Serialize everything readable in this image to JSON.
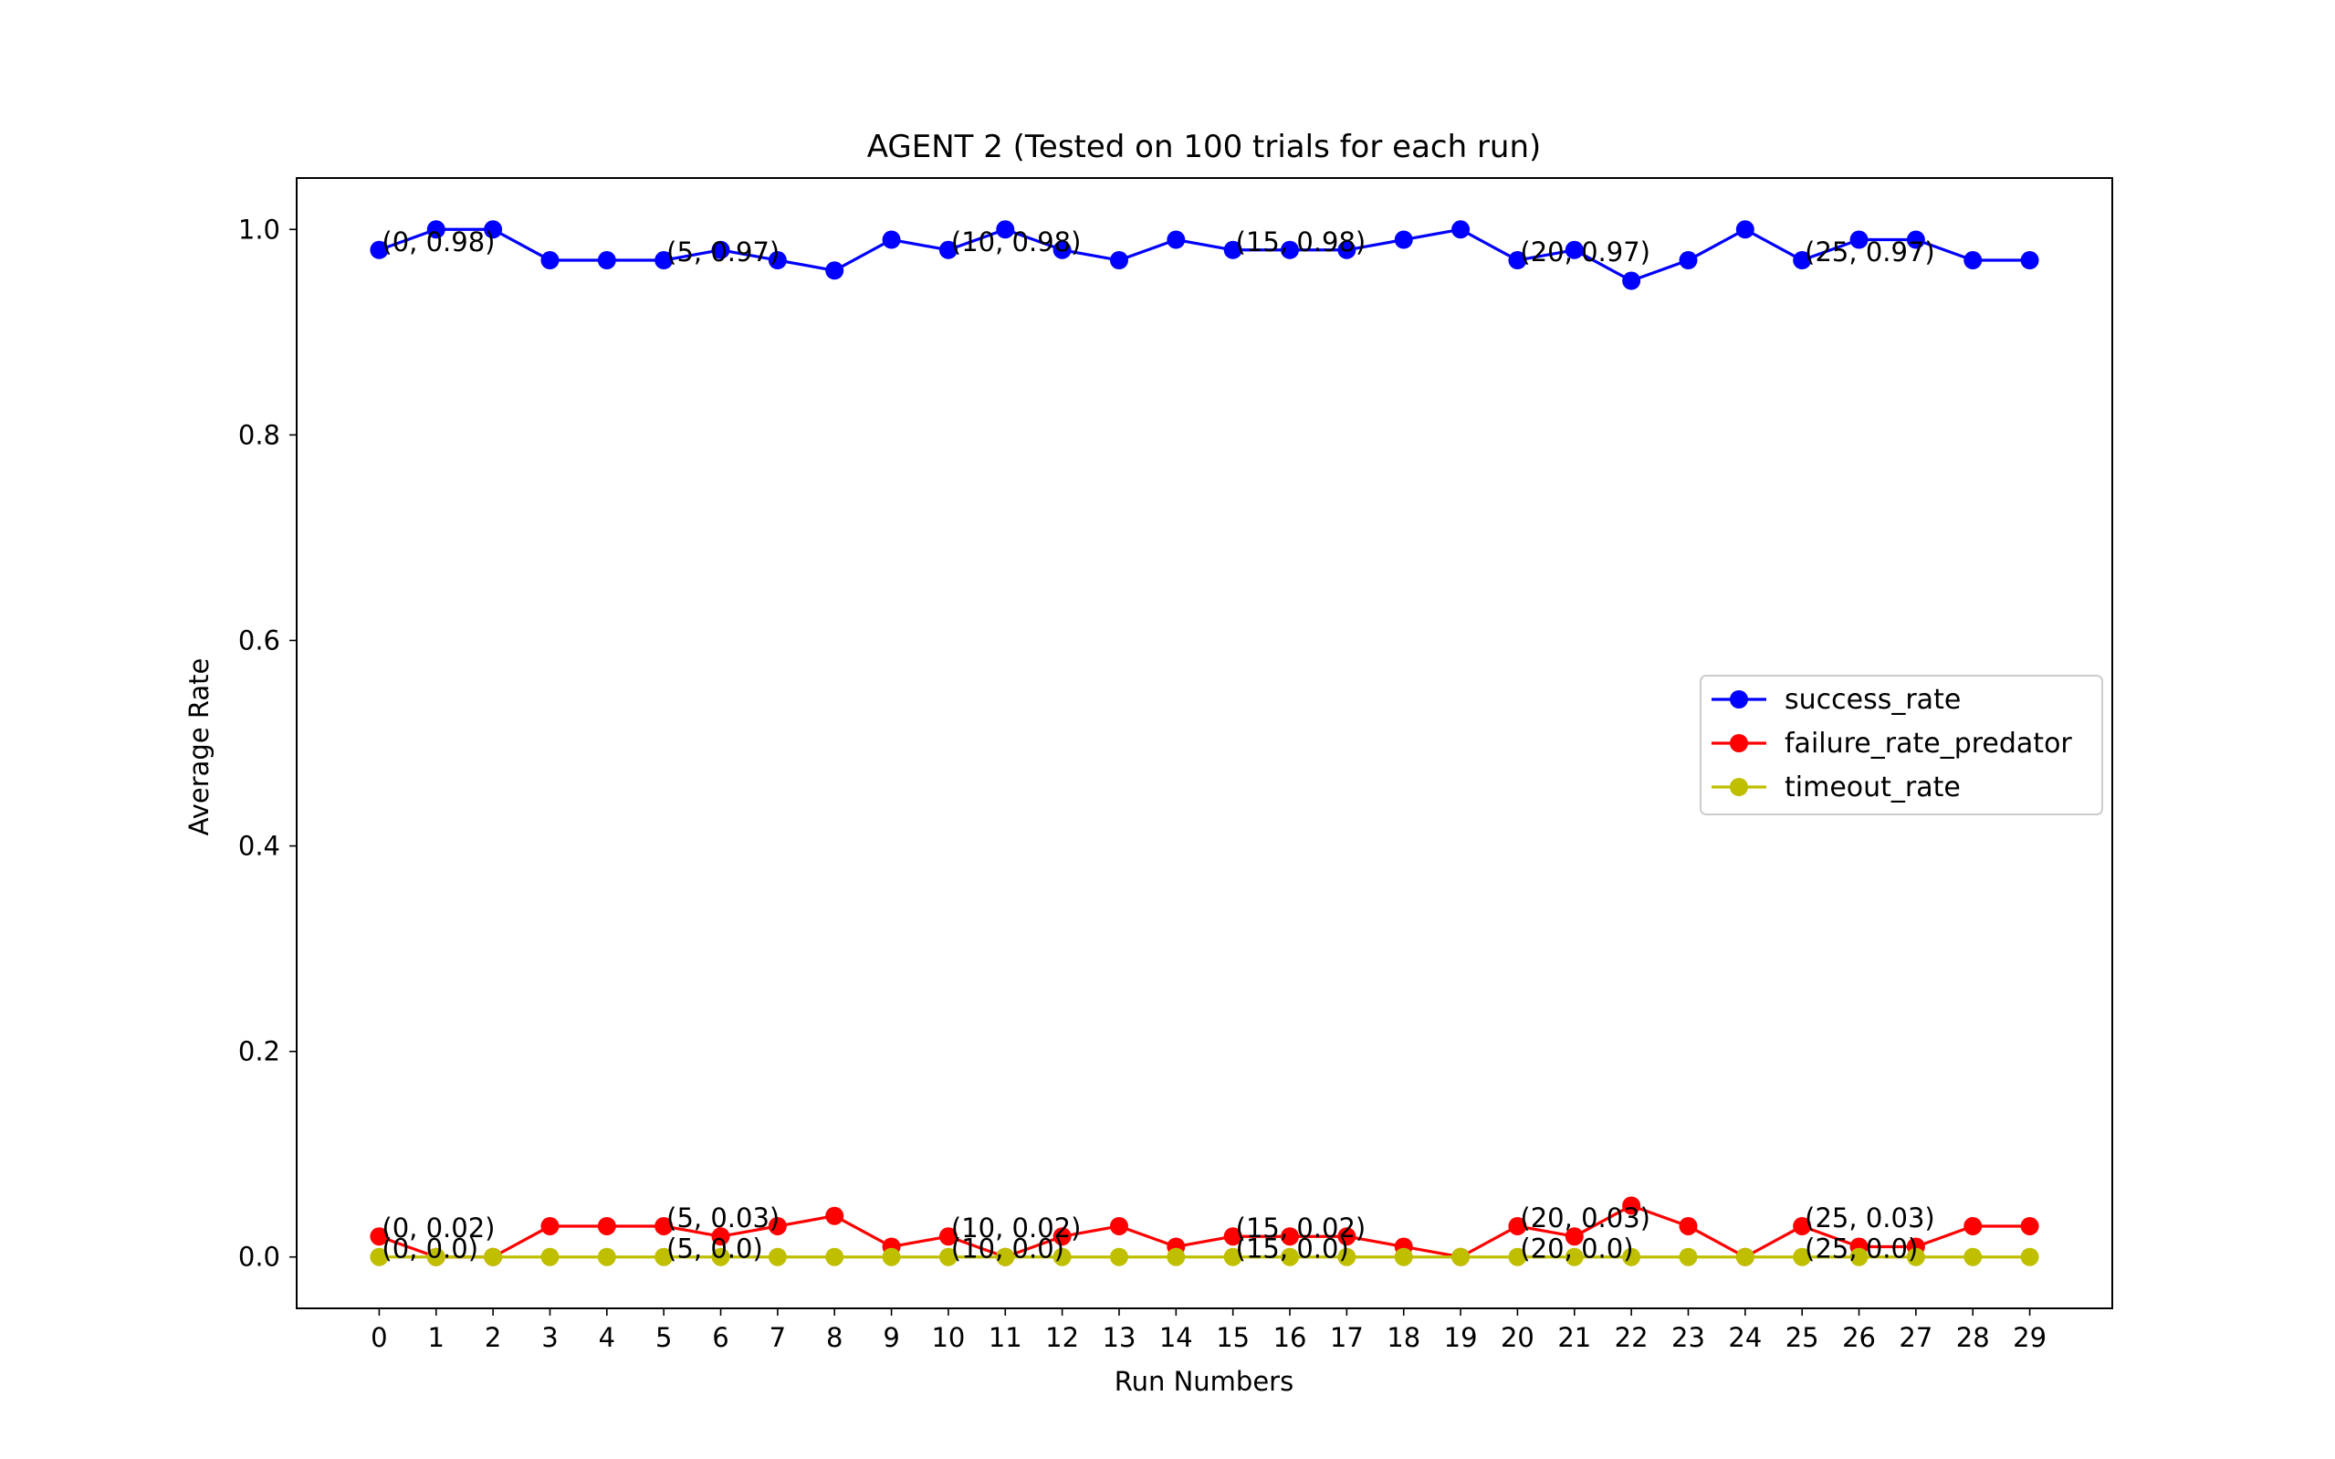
{
  "chart_data": {
    "type": "line",
    "title": "AGENT 2 (Tested on 100 trials for each run)",
    "xlabel": "Run Numbers",
    "ylabel": "Average Rate",
    "x": [
      0,
      1,
      2,
      3,
      4,
      5,
      6,
      7,
      8,
      9,
      10,
      11,
      12,
      13,
      14,
      15,
      16,
      17,
      18,
      19,
      20,
      21,
      22,
      23,
      24,
      25,
      26,
      27,
      28,
      29
    ],
    "xticks": [
      "0",
      "1",
      "2",
      "3",
      "4",
      "5",
      "6",
      "7",
      "8",
      "9",
      "10",
      "11",
      "12",
      "13",
      "14",
      "15",
      "16",
      "17",
      "18",
      "19",
      "20",
      "21",
      "22",
      "23",
      "24",
      "25",
      "26",
      "27",
      "28",
      "29"
    ],
    "yticks": [
      "0.0",
      "0.2",
      "0.4",
      "0.6",
      "0.8",
      "1.0"
    ],
    "ylim": [
      -0.05,
      1.05
    ],
    "xlim": [
      -1.45,
      30.45
    ],
    "grid": false,
    "legend_position": "center-right",
    "series": [
      {
        "name": "success_rate",
        "color": "#0000ff",
        "marker": "circle",
        "values": [
          0.98,
          1.0,
          1.0,
          0.97,
          0.97,
          0.97,
          0.98,
          0.97,
          0.96,
          0.99,
          0.98,
          1.0,
          0.98,
          0.97,
          0.99,
          0.98,
          0.98,
          0.98,
          0.99,
          1.0,
          0.97,
          0.98,
          0.95,
          0.97,
          1.0,
          0.97,
          0.99,
          0.99,
          0.97,
          0.97
        ],
        "annotations": [
          {
            "x": 0,
            "y": 0.98,
            "text": "(0, 0.98)"
          },
          {
            "x": 5,
            "y": 0.97,
            "text": "(5, 0.97)"
          },
          {
            "x": 10,
            "y": 0.98,
            "text": "(10, 0.98)"
          },
          {
            "x": 15,
            "y": 0.98,
            "text": "(15, 0.98)"
          },
          {
            "x": 20,
            "y": 0.97,
            "text": "(20, 0.97)"
          },
          {
            "x": 25,
            "y": 0.97,
            "text": "(25, 0.97)"
          }
        ]
      },
      {
        "name": "failure_rate_predator",
        "color": "#ff0000",
        "marker": "circle",
        "values": [
          0.02,
          0.0,
          0.0,
          0.03,
          0.03,
          0.03,
          0.02,
          0.03,
          0.04,
          0.01,
          0.02,
          0.0,
          0.02,
          0.03,
          0.01,
          0.02,
          0.02,
          0.02,
          0.01,
          0.0,
          0.03,
          0.02,
          0.05,
          0.03,
          0.0,
          0.03,
          0.01,
          0.01,
          0.03,
          0.03
        ],
        "annotations": [
          {
            "x": 0,
            "y": 0.02,
            "text": "(0, 0.02)"
          },
          {
            "x": 5,
            "y": 0.03,
            "text": "(5, 0.03)"
          },
          {
            "x": 10,
            "y": 0.02,
            "text": "(10, 0.02)"
          },
          {
            "x": 15,
            "y": 0.02,
            "text": "(15, 0.02)"
          },
          {
            "x": 20,
            "y": 0.03,
            "text": "(20, 0.03)"
          },
          {
            "x": 25,
            "y": 0.03,
            "text": "(25, 0.03)"
          }
        ]
      },
      {
        "name": "timeout_rate",
        "color": "#bfbf00",
        "marker": "circle",
        "values": [
          0,
          0,
          0,
          0,
          0,
          0,
          0,
          0,
          0,
          0,
          0,
          0,
          0,
          0,
          0,
          0,
          0,
          0,
          0,
          0,
          0,
          0,
          0,
          0,
          0,
          0,
          0,
          0,
          0,
          0
        ],
        "annotations": [
          {
            "x": 0,
            "y": 0.0,
            "text": "(0, 0.0)"
          },
          {
            "x": 5,
            "y": 0.0,
            "text": "(5, 0.0)"
          },
          {
            "x": 10,
            "y": 0.0,
            "text": "(10, 0.0)"
          },
          {
            "x": 15,
            "y": 0.0,
            "text": "(15, 0.0)"
          },
          {
            "x": 20,
            "y": 0.0,
            "text": "(20, 0.0)"
          },
          {
            "x": 25,
            "y": 0.0,
            "text": "(25, 0.0)"
          }
        ]
      }
    ]
  }
}
